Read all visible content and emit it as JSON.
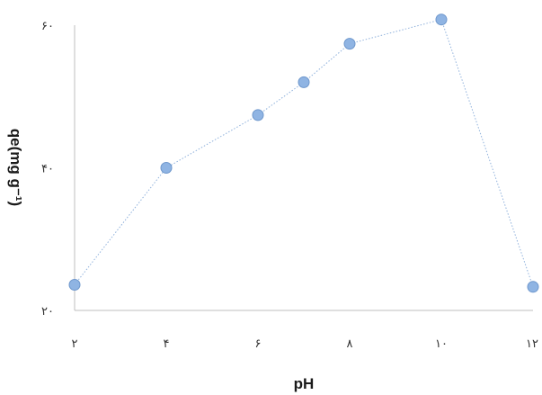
{
  "chart_data": {
    "type": "line",
    "title": "",
    "xlabel": "pH",
    "ylabel": "qe(mg g⁻¹)",
    "x": [
      2,
      4,
      6,
      7,
      8,
      10,
      12
    ],
    "series": [
      {
        "values": [
          23.6,
          40.0,
          47.4,
          52.0,
          57.4,
          60.8,
          23.3
        ]
      }
    ],
    "xlim": [
      2,
      12
    ],
    "ylim": [
      20,
      60
    ],
    "x_ticks": [
      2,
      4,
      6,
      8,
      10,
      12
    ],
    "x_tick_labels": [
      "۲",
      "۴",
      "۶",
      "۸",
      "۱۰",
      "۱۲"
    ],
    "y_ticks": [
      20,
      40,
      60
    ],
    "y_tick_labels": [
      "۲۰",
      "۴۰",
      "۶۰"
    ],
    "grid": false,
    "legend": "none",
    "line_style": "dotted",
    "colors": {
      "line": "#8fb1dc",
      "marker_fill": "#8fb4e3",
      "marker_stroke": "#6e97cc",
      "axis": "#bfbfbf"
    }
  }
}
